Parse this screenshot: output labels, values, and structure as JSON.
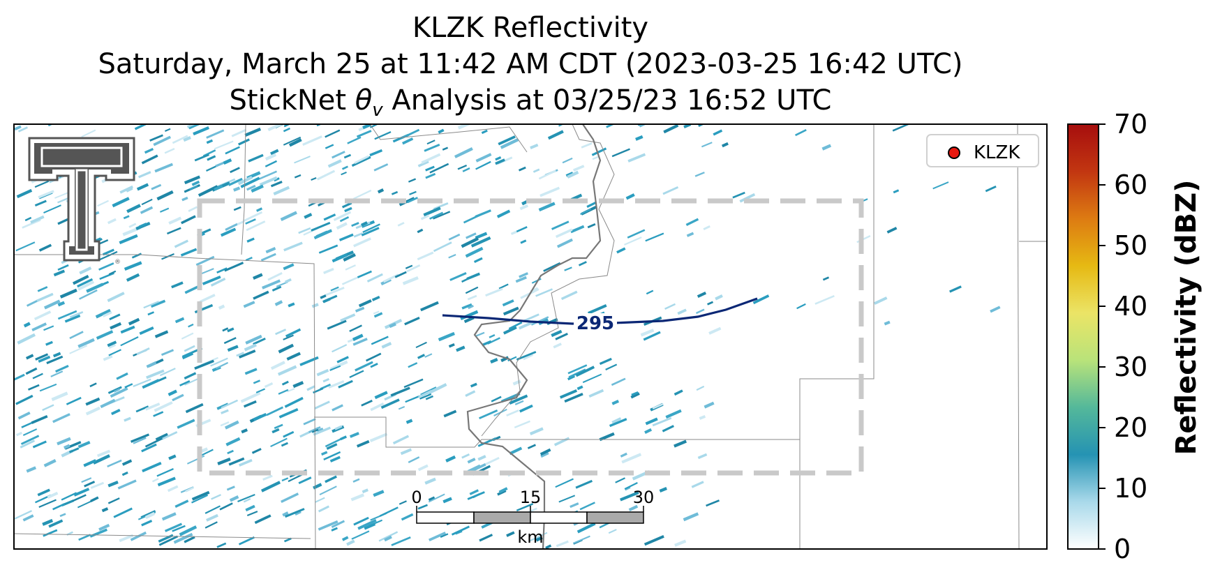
{
  "title": {
    "line1": "KLZK Reflectivity",
    "line2": "Saturday, March 25 at 11:42 AM CDT (2023-03-25 16:42 UTC)",
    "line3_prefix": "StickNet ",
    "line3_symbol": "θ",
    "line3_subscript": "v",
    "line3_suffix": " Analysis at 03/25/23 16:52 UTC"
  },
  "legend": {
    "label": "KLZK",
    "marker_color": "#e8180f"
  },
  "contour": {
    "label": "295",
    "color": "#0b2775"
  },
  "scale_bar": {
    "unit": "km",
    "ticks": [
      "0",
      "15",
      "30"
    ]
  },
  "colorbar": {
    "label": "Reflectivity (dBZ)",
    "ticks": [
      "0",
      "10",
      "20",
      "30",
      "40",
      "50",
      "60",
      "70"
    ],
    "colors": [
      "#ffffff",
      "#a9d9ea",
      "#2593b3",
      "#54b89a",
      "#b9e37a",
      "#ebe466",
      "#e6b913",
      "#dd7b12",
      "#c23611",
      "#a60e0e"
    ]
  },
  "radar_field": {
    "dominant_color": "#2593b3",
    "light_color": "#a9d9ea",
    "value_range_dbz": [
      0,
      12
    ]
  }
}
